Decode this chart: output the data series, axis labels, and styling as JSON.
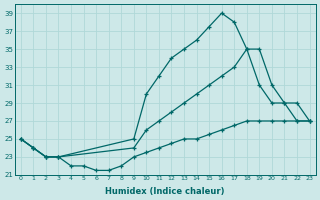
{
  "xlabel": "Humidex (Indice chaleur)",
  "xlim": [
    -0.5,
    23.5
  ],
  "ylim": [
    21,
    40
  ],
  "yticks": [
    21,
    23,
    25,
    27,
    29,
    31,
    33,
    35,
    37,
    39
  ],
  "xticks": [
    0,
    1,
    2,
    3,
    4,
    5,
    6,
    7,
    8,
    9,
    10,
    11,
    12,
    13,
    14,
    15,
    16,
    17,
    18,
    19,
    20,
    21,
    22,
    23
  ],
  "bg_color": "#cde8e8",
  "grid_color": "#b0d8d8",
  "line_color": "#006868",
  "series": [
    {
      "x": [
        0,
        1,
        2,
        3,
        9,
        10,
        11,
        12,
        13,
        14,
        15,
        16,
        17,
        18,
        19,
        20,
        21,
        22,
        23
      ],
      "y": [
        25,
        24,
        23,
        23,
        25,
        30,
        32,
        34,
        35,
        36,
        37.5,
        39,
        38,
        35,
        35,
        31,
        29,
        27,
        27
      ]
    },
    {
      "x": [
        0,
        1,
        2,
        3,
        9,
        10,
        11,
        12,
        13,
        14,
        15,
        16,
        17,
        18,
        19,
        20,
        21,
        22,
        23
      ],
      "y": [
        25,
        24,
        23,
        23,
        24,
        26,
        27,
        28,
        29,
        30,
        31,
        32,
        33,
        35,
        31,
        29,
        29,
        29,
        27
      ]
    },
    {
      "x": [
        0,
        1,
        2,
        3,
        4,
        5,
        6,
        7,
        8,
        9,
        10,
        11,
        12,
        13,
        14,
        15,
        16,
        17,
        18,
        19,
        20,
        21,
        22,
        23
      ],
      "y": [
        25,
        24,
        23,
        23,
        22,
        22,
        21.5,
        21.5,
        22,
        23,
        23.5,
        24,
        24.5,
        25,
        25,
        25.5,
        26,
        26.5,
        27,
        27,
        27,
        27,
        27,
        27
      ]
    }
  ]
}
